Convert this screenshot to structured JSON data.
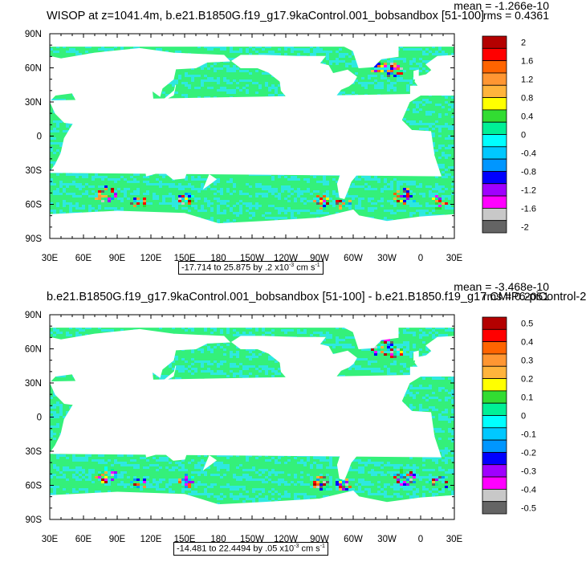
{
  "panels": [
    {
      "title": "WISOP at z=1041.4m, b.e21.B1850G.f19_g17.9kaControl.001_bobsandbox [51-100]",
      "mean": "mean = -1.266e-10",
      "rms": "rms = 0.4361",
      "range_text": "-17.714 to 25.875 by .2 x10",
      "range_exp": "-3",
      "range_unit": " cm s",
      "range_unit_exp": "-1",
      "colorbar_labels": [
        "2",
        "1.6",
        "1.2",
        "0.8",
        "0.4",
        "0",
        "-0.4",
        "-0.8",
        "-1.2",
        "-1.6",
        "-2"
      ]
    },
    {
      "title": "b.e21.B1850G.f19_g17.9kaControl.001_bobsandbox [51-100] - b.e21.B1850.f19_g17.CMIP6-piControl-2",
      "mean": "mean = -3.468e-10",
      "rms": "rms = 0.2051",
      "range_text": "-14.481 to 22.4494 by .05 x10",
      "range_exp": "-3",
      "range_unit": " cm s",
      "range_unit_exp": "-1",
      "colorbar_labels": [
        "0.5",
        "0.4",
        "0.3",
        "0.2",
        "0.1",
        "0",
        "-0.1",
        "-0.2",
        "-0.3",
        "-0.4",
        "-0.5"
      ]
    }
  ],
  "colorbar_colors": [
    "#b40000",
    "#ff0000",
    "#ff6400",
    "#ff9632",
    "#ffb43c",
    "#ffff00",
    "#32dc32",
    "#00f096",
    "#00ffff",
    "#00c8ff",
    "#0096ff",
    "#0000ff",
    "#a000ff",
    "#ff00ff",
    "#c8c8c8",
    "#646464"
  ],
  "ocean_color": "#34f07a",
  "ocean_color_alt": "#2ee8e0",
  "land_color": "#ffffff",
  "chart_data": [
    {
      "type": "heatmap",
      "title": "WISOP at z=1041.4m, b.e21.B1850G.f19_g17.9kaControl.001_bobsandbox [51-100]",
      "x_tick_labels": [
        "30E",
        "60E",
        "90E",
        "120E",
        "150E",
        "180",
        "150W",
        "120W",
        "90W",
        "60W",
        "30W",
        "0",
        "30E"
      ],
      "y_tick_labels": [
        "90N",
        "60N",
        "30N",
        "0",
        "30S",
        "60S",
        "90S"
      ],
      "xlim": [
        30,
        390
      ],
      "ylim": [
        -90,
        90
      ],
      "colorbar_ticks": [
        2,
        1.6,
        1.2,
        0.8,
        0.4,
        0,
        -0.4,
        -0.8,
        -1.2,
        -1.6,
        -2
      ],
      "mean": -1.266e-10,
      "rms": 0.4361,
      "range": [
        -17.714,
        25.875
      ],
      "contour_interval": 0.2,
      "units": "x10^-3 cm s^-1"
    },
    {
      "type": "heatmap",
      "title": "b.e21.B1850G.f19_g17.9kaControl.001_bobsandbox [51-100] - b.e21.B1850.f19_g17.CMIP6-piControl-2",
      "x_tick_labels": [
        "30E",
        "60E",
        "90E",
        "120E",
        "150E",
        "180",
        "150W",
        "120W",
        "90W",
        "60W",
        "30W",
        "0",
        "30E"
      ],
      "y_tick_labels": [
        "90N",
        "60N",
        "30N",
        "0",
        "30S",
        "60S",
        "90S"
      ],
      "xlim": [
        30,
        390
      ],
      "ylim": [
        -90,
        90
      ],
      "colorbar_ticks": [
        0.5,
        0.4,
        0.3,
        0.2,
        0.1,
        0,
        -0.1,
        -0.2,
        -0.3,
        -0.4,
        -0.5
      ],
      "mean": -3.468e-10,
      "rms": 0.2051,
      "range": [
        -14.481,
        22.4494
      ],
      "contour_interval": 0.05,
      "units": "x10^-3 cm s^-1"
    }
  ]
}
